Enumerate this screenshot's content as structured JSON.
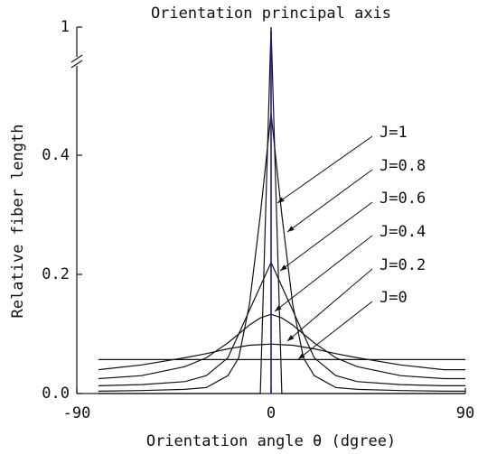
{
  "chart_data": {
    "type": "line",
    "title": "Orientation principal axis",
    "x_label": "Orientation angle θ (dgree)",
    "y_label": "Relative fiber length",
    "x": [
      -80,
      -60,
      -40,
      -30,
      -20,
      -15,
      -10,
      -5,
      0,
      5,
      10,
      15,
      20,
      30,
      40,
      60,
      80,
      90
    ],
    "series": [
      {
        "name": "J=1",
        "color": "#111111",
        "values": [
          0,
          0,
          0,
          0,
          0,
          0,
          0,
          0,
          1,
          0,
          0,
          0,
          0,
          0,
          0,
          0,
          0,
          0
        ]
      },
      {
        "name": "J=0.8",
        "color": "#111111",
        "values": [
          0.004,
          0.005,
          0.007,
          0.01,
          0.03,
          0.06,
          0.15,
          0.3,
          0.47,
          0.3,
          0.15,
          0.06,
          0.03,
          0.01,
          0.007,
          0.005,
          0.004,
          0.004
        ]
      },
      {
        "name": "J=0.6",
        "color": "#111111",
        "values": [
          0.013,
          0.015,
          0.02,
          0.03,
          0.06,
          0.1,
          0.14,
          0.18,
          0.22,
          0.18,
          0.14,
          0.1,
          0.06,
          0.03,
          0.02,
          0.015,
          0.013,
          0.013
        ]
      },
      {
        "name": "J=0.4",
        "color": "#111111",
        "values": [
          0.025,
          0.03,
          0.045,
          0.06,
          0.085,
          0.1,
          0.115,
          0.127,
          0.133,
          0.127,
          0.115,
          0.1,
          0.085,
          0.06,
          0.045,
          0.03,
          0.025,
          0.025
        ]
      },
      {
        "name": "J=0.2",
        "color": "#111111",
        "values": [
          0.04,
          0.048,
          0.06,
          0.067,
          0.075,
          0.078,
          0.081,
          0.082,
          0.083,
          0.082,
          0.081,
          0.078,
          0.075,
          0.067,
          0.06,
          0.048,
          0.04,
          0.04
        ]
      },
      {
        "name": "J=0",
        "color": "#111111",
        "values": [
          0.057,
          0.057,
          0.057,
          0.057,
          0.057,
          0.057,
          0.057,
          0.057,
          0.057,
          0.057,
          0.057,
          0.057,
          0.057,
          0.057,
          0.057,
          0.057,
          0.057,
          0.057
        ]
      }
    ],
    "principal_axis": {
      "x": 0,
      "color": "#1a1aa8"
    },
    "xlim": [
      -90,
      90
    ],
    "xticks": [
      -90,
      0,
      90
    ],
    "ylim": [
      0,
      0.55
    ],
    "yticks": [
      {
        "value": 0,
        "label": "0.0"
      },
      0.2,
      0.4,
      1
    ],
    "axis_break": true
  }
}
